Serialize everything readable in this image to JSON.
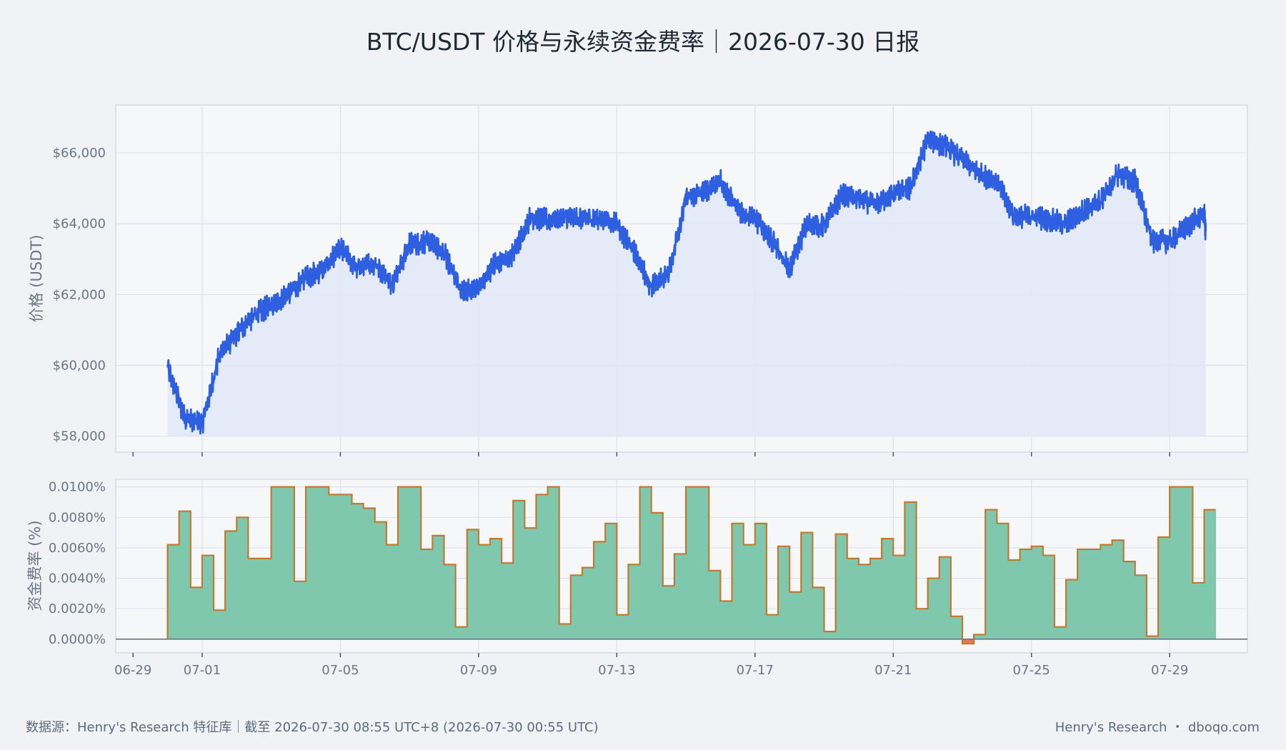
{
  "page": {
    "title": "BTC/USDT 价格与永续资金费率｜2026-07-30 日报",
    "footer_left": "数据源：Henry's Research 特征库｜截至 2026-07-30 08:55 UTC+8 (2026-07-30 00:55 UTC)",
    "footer_right": "Henry's Research ・ dboqo.com"
  },
  "colors": {
    "background": "#f0f2f5",
    "plot_background": "#f6f7f9",
    "grid": "#dde2ea",
    "price_line": "#2e5fe0",
    "price_fill": "#e2e8f6",
    "funding_fill_positive": "#7fc8ae",
    "funding_fill_negative": "#e0795a",
    "funding_step_line": "#c27a32",
    "zero_line": "#6b7685"
  },
  "chart_data": [
    {
      "type": "line",
      "name": "price",
      "ylabel": "价格 (USDT)",
      "y_ticks": [
        "$58,000",
        "$60,000",
        "$62,000",
        "$64,000",
        "$66,000"
      ],
      "y_tick_values": [
        58000,
        60000,
        62000,
        64000,
        66000
      ],
      "ylim": [
        57550,
        67350
      ],
      "xlim": [
        "2026-06-28T12:00",
        "2026-07-31T06:00"
      ],
      "x_ticks": [
        "07-01",
        "07-05",
        "07-09",
        "07-13",
        "07-17",
        "07-21",
        "07-25",
        "07-29"
      ],
      "fill_baseline": 58000,
      "grid": true,
      "x": [
        "2026-06-30T00:00",
        "2026-06-30T12:00",
        "2026-07-01T00:00",
        "2026-07-01T12:00",
        "2026-07-02T00:00",
        "2026-07-02T12:00",
        "2026-07-03T00:00",
        "2026-07-03T12:00",
        "2026-07-04T00:00",
        "2026-07-04T12:00",
        "2026-07-05T00:00",
        "2026-07-05T12:00",
        "2026-07-06T00:00",
        "2026-07-06T12:00",
        "2026-07-07T00:00",
        "2026-07-07T12:00",
        "2026-07-08T00:00",
        "2026-07-08T12:00",
        "2026-07-09T00:00",
        "2026-07-09T12:00",
        "2026-07-10T00:00",
        "2026-07-10T12:00",
        "2026-07-11T00:00",
        "2026-07-11T12:00",
        "2026-07-12T00:00",
        "2026-07-12T12:00",
        "2026-07-13T00:00",
        "2026-07-13T12:00",
        "2026-07-14T00:00",
        "2026-07-14T12:00",
        "2026-07-15T00:00",
        "2026-07-15T12:00",
        "2026-07-16T00:00",
        "2026-07-16T12:00",
        "2026-07-17T00:00",
        "2026-07-17T12:00",
        "2026-07-18T00:00",
        "2026-07-18T12:00",
        "2026-07-19T00:00",
        "2026-07-19T12:00",
        "2026-07-20T00:00",
        "2026-07-20T12:00",
        "2026-07-21T00:00",
        "2026-07-21T12:00",
        "2026-07-22T00:00",
        "2026-07-22T12:00",
        "2026-07-23T00:00",
        "2026-07-23T12:00",
        "2026-07-24T00:00",
        "2026-07-24T12:00",
        "2026-07-25T00:00",
        "2026-07-25T12:00",
        "2026-07-26T00:00",
        "2026-07-26T12:00",
        "2026-07-27T00:00",
        "2026-07-27T12:00",
        "2026-07-28T00:00",
        "2026-07-28T12:00",
        "2026-07-29T00:00",
        "2026-07-29T12:00",
        "2026-07-30T00:00",
        "2026-07-30T01:00"
      ],
      "values": [
        59950,
        58500,
        58350,
        60300,
        60900,
        61400,
        61700,
        62000,
        62500,
        62700,
        63300,
        62750,
        62900,
        62300,
        63400,
        63500,
        63200,
        62100,
        62200,
        62900,
        63100,
        64200,
        64100,
        64200,
        64150,
        64150,
        64000,
        63200,
        62200,
        62600,
        64700,
        64900,
        65200,
        64400,
        64150,
        63500,
        62700,
        64000,
        63950,
        64800,
        64700,
        64550,
        64850,
        65000,
        66400,
        66200,
        65800,
        65400,
        65200,
        64200,
        64200,
        64100,
        64000,
        64350,
        64650,
        65400,
        65200,
        63500,
        63500,
        63900,
        64300,
        63800
      ]
    },
    {
      "type": "bar",
      "name": "funding rate",
      "ylabel": "资金费率 (%)",
      "y_ticks": [
        "0.0000%",
        "0.0020%",
        "0.0040%",
        "0.0060%",
        "0.0080%",
        "0.0100%"
      ],
      "y_tick_values": [
        0,
        0.002,
        0.004,
        0.006,
        0.008,
        0.01
      ],
      "ylim": [
        -0.0009,
        0.0105
      ],
      "x_ticks": [
        "06-29",
        "07-01",
        "07-05",
        "07-09",
        "07-13",
        "07-17",
        "07-21",
        "07-25",
        "07-29"
      ],
      "step_start": "2026-06-30T00:00",
      "step_hours": 8,
      "grid": true,
      "values": [
        0.0062,
        0.0084,
        0.0034,
        0.0055,
        0.0019,
        0.0071,
        0.008,
        0.0053,
        0.0053,
        0.01,
        0.01,
        0.0038,
        0.01,
        0.01,
        0.0095,
        0.0095,
        0.0089,
        0.0086,
        0.0077,
        0.0062,
        0.01,
        0.01,
        0.0059,
        0.0068,
        0.0049,
        0.0008,
        0.0072,
        0.0062,
        0.0066,
        0.005,
        0.0091,
        0.0073,
        0.0095,
        0.01,
        0.001,
        0.0042,
        0.0047,
        0.0064,
        0.0076,
        0.0016,
        0.0049,
        0.01,
        0.0083,
        0.0035,
        0.0056,
        0.01,
        0.01,
        0.0045,
        0.0025,
        0.0076,
        0.0062,
        0.0076,
        0.0016,
        0.0061,
        0.0031,
        0.007,
        0.0034,
        0.0005,
        0.0069,
        0.0053,
        0.0049,
        0.0053,
        0.0066,
        0.0055,
        0.009,
        0.002,
        0.004,
        0.0054,
        0.0015,
        -0.0003,
        0.0003,
        0.0085,
        0.0076,
        0.0052,
        0.0059,
        0.0061,
        0.0055,
        0.0008,
        0.0039,
        0.0059,
        0.0059,
        0.0062,
        0.0065,
        0.0051,
        0.0042,
        0.0002,
        0.0067,
        0.01,
        0.01,
        0.0037,
        0.0085
      ]
    }
  ]
}
